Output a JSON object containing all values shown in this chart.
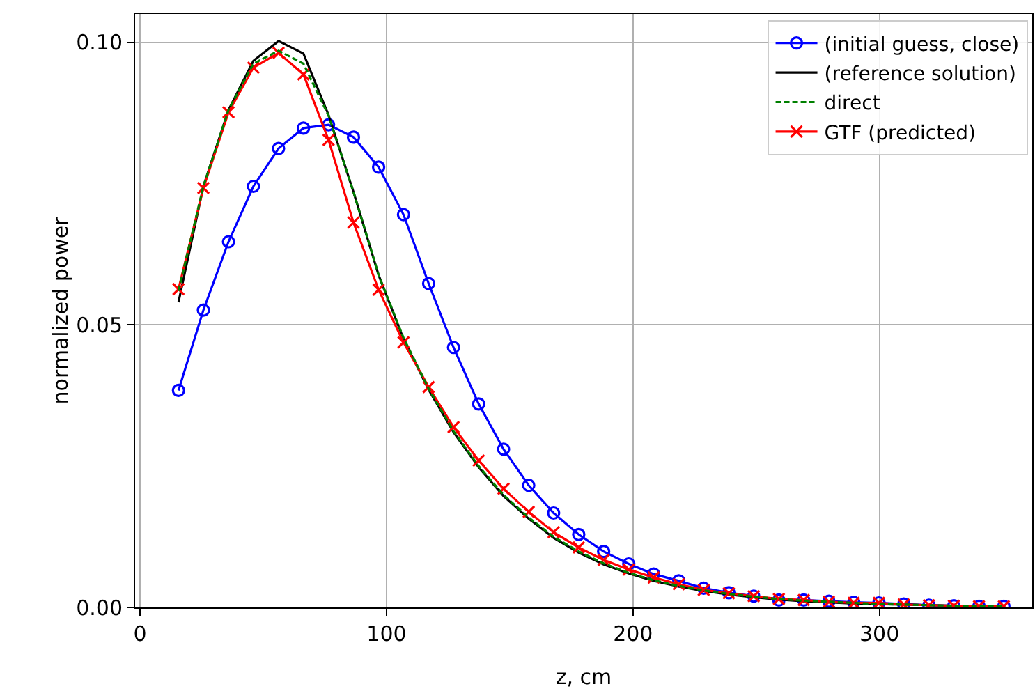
{
  "chart_data": {
    "type": "line",
    "xlabel": "z, cm",
    "ylabel": "normalized power",
    "x": [
      15.6,
      25.7,
      35.9,
      46.0,
      56.2,
      66.3,
      76.5,
      86.6,
      96.8,
      106.9,
      117.1,
      127.2,
      137.4,
      147.5,
      157.7,
      167.8,
      178.0,
      188.1,
      198.3,
      208.4,
      218.6,
      228.7,
      238.9,
      249.0,
      259.2,
      269.3,
      279.5,
      289.6,
      299.8,
      309.9,
      320.1,
      330.2,
      340.4,
      350.5
    ],
    "series": [
      {
        "name": "(initial guess, close)",
        "color": "#0000ff",
        "marker": "circle",
        "line_style": "solid",
        "values": [
          0.0384,
          0.0526,
          0.0647,
          0.0745,
          0.0812,
          0.0848,
          0.0854,
          0.0832,
          0.0779,
          0.0695,
          0.0573,
          0.046,
          0.036,
          0.028,
          0.0216,
          0.0167,
          0.0129,
          0.0099,
          0.0077,
          0.0059,
          0.0047,
          0.0034,
          0.0026,
          0.002,
          0.0013,
          0.0013,
          0.0011,
          0.0009,
          0.0008,
          0.0006,
          0.0004,
          0.0003,
          0.0002,
          0.0002
        ]
      },
      {
        "name": "(reference solution)",
        "color": "#000000",
        "marker": "none",
        "line_style": "solid",
        "values": [
          0.054,
          0.0745,
          0.088,
          0.0967,
          0.1002,
          0.098,
          0.0871,
          0.0735,
          0.0588,
          0.0475,
          0.0385,
          0.031,
          0.0248,
          0.0197,
          0.0157,
          0.0123,
          0.0097,
          0.0076,
          0.006,
          0.0047,
          0.0037,
          0.0029,
          0.0023,
          0.0018,
          0.0014,
          0.0011,
          0.0009,
          0.0007,
          0.0006,
          0.0005,
          0.0004,
          0.0003,
          0.0002,
          0.0002
        ]
      },
      {
        "name": "direct",
        "color": "#008000",
        "marker": "none",
        "line_style": "dashed",
        "values": [
          0.056,
          0.0745,
          0.088,
          0.0962,
          0.0985,
          0.0962,
          0.087,
          0.0735,
          0.0588,
          0.0477,
          0.0387,
          0.0312,
          0.025,
          0.0199,
          0.0159,
          0.0125,
          0.0099,
          0.0078,
          0.0061,
          0.0048,
          0.0038,
          0.003,
          0.0024,
          0.0019,
          0.0015,
          0.0012,
          0.001,
          0.0008,
          0.0006,
          0.0005,
          0.0004,
          0.0003,
          0.0002,
          0.0002
        ]
      },
      {
        "name": "GTF (predicted)",
        "color": "#ff0000",
        "marker": "cross",
        "line_style": "solid",
        "values": [
          0.0563,
          0.0742,
          0.0876,
          0.0955,
          0.0981,
          0.0943,
          0.0827,
          0.0681,
          0.0562,
          0.0469,
          0.039,
          0.0319,
          0.026,
          0.021,
          0.0169,
          0.0133,
          0.0106,
          0.0084,
          0.0067,
          0.0053,
          0.0041,
          0.0031,
          0.0025,
          0.002,
          0.0015,
          0.0013,
          0.001,
          0.0008,
          0.0008,
          0.0005,
          0.0004,
          0.0003,
          0.0002,
          0.0002
        ]
      }
    ],
    "xlim": [
      -2,
      362
    ],
    "xticks": [
      0,
      100,
      200,
      300
    ],
    "ylim": [
      0,
      0.105
    ],
    "yticks": [
      {
        "value": 0,
        "label": "0.00"
      },
      {
        "value": 0.05,
        "label": "0.05"
      },
      {
        "value": 0.1,
        "label": "0.10"
      }
    ],
    "grid": true,
    "legend": "top right"
  }
}
